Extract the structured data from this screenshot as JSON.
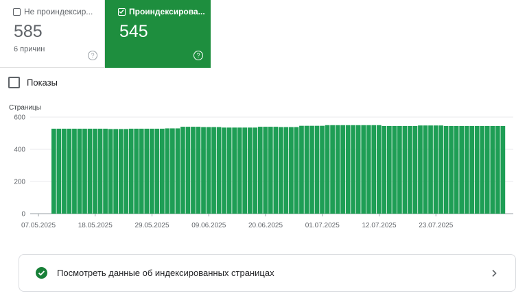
{
  "cards": {
    "unindexed": {
      "label": "Не проиндексир...",
      "value": "585",
      "subtitle": "6 причин",
      "checked": false
    },
    "indexed": {
      "label": "Проиндексирова...",
      "value": "545",
      "checked": true
    }
  },
  "impressions": {
    "label": "Показы",
    "checked": false
  },
  "chart_data": {
    "type": "bar",
    "ylabel": "Страницы",
    "ylim": [
      0,
      600
    ],
    "yticks": [
      "0",
      "200",
      "400",
      "600"
    ],
    "xtick_labels": [
      "07.05.2025",
      "18.05.2025",
      "29.05.2025",
      "09.06.2025",
      "20.06.2025",
      "01.07.2025",
      "12.07.2025",
      "23.07.2025"
    ],
    "xtick_index": [
      0,
      11,
      22,
      33,
      44,
      55,
      66,
      77
    ],
    "series": [
      {
        "color": "#1e9e55",
        "values": [
          528,
          528,
          528,
          528,
          528,
          528,
          528,
          528,
          528,
          528,
          528,
          526,
          526,
          526,
          526,
          528,
          528,
          528,
          528,
          528,
          528,
          528,
          530,
          530,
          530,
          540,
          540,
          540,
          540,
          538,
          538,
          538,
          538,
          535,
          535,
          535,
          535,
          535,
          535,
          535,
          540,
          540,
          540,
          540,
          538,
          538,
          538,
          538,
          546,
          546,
          546,
          546,
          546,
          550,
          550,
          550,
          550,
          550,
          550,
          550,
          550,
          550,
          550,
          550,
          545,
          545,
          545,
          545,
          545,
          545,
          545,
          548,
          548,
          548,
          548,
          548,
          545,
          545,
          545,
          545,
          545,
          545,
          545,
          545,
          545,
          545,
          545,
          545
        ]
      }
    ]
  },
  "action": {
    "label": "Посмотреть данные об индексированных страницах"
  },
  "colors": {
    "accent_green": "#1e8e3e",
    "bar_green": "#1e9e55",
    "grid": "#e8eaed",
    "text_muted": "#5f6368"
  }
}
